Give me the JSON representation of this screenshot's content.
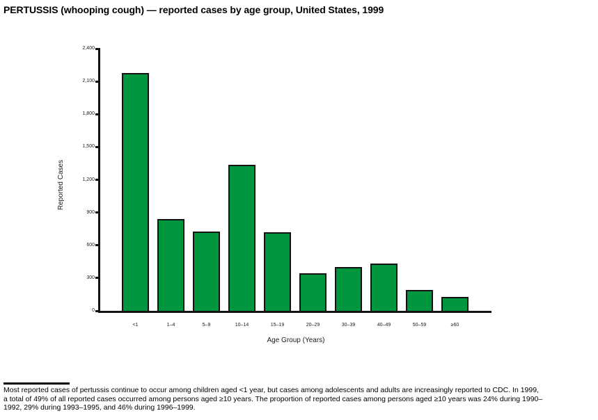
{
  "title": "PERTUSSIS (whooping cough) — reported cases by age group, United States, 1999",
  "chart_data": {
    "type": "bar",
    "title": "PERTUSSIS (whooping cough) — reported cases by age group, United States, 1999",
    "categories": [
      "<1",
      "1–4",
      "5–9",
      "10–14",
      "15–19",
      "20–29",
      "30–39",
      "40–49",
      "50–59",
      "≥60"
    ],
    "values": [
      2175,
      840,
      725,
      1335,
      720,
      345,
      400,
      435,
      190,
      125
    ],
    "xlabel": "Age Group (Years)",
    "ylabel": "Reported Cases",
    "ylim": [
      0,
      2400
    ],
    "y_ticks": [
      0,
      300,
      600,
      900,
      1200,
      1500,
      1800,
      2100,
      2400
    ],
    "y_tick_labels": [
      "0",
      "300",
      "600",
      "900",
      "1,200",
      "1,500",
      "1,800",
      "2,100",
      "2,400"
    ],
    "grid": false,
    "legend": "none",
    "bar_color": "#009640",
    "bar_border_color": "#121212",
    "axis_color": "#121212"
  },
  "footer": {
    "lines": [
      "Most reported cases of pertussis continue to occur among children aged <1 year, but cases among adolescents and adults are increasingly reported to CDC. In 1999,",
      "a total of 49% of all reported cases occurred among persons aged ≥10 years. The proportion of reported cases among persons aged ≥10 years was 24% during 1990–",
      "1992, 29% during 1993–1995, and 46% during 1996–1999."
    ]
  }
}
